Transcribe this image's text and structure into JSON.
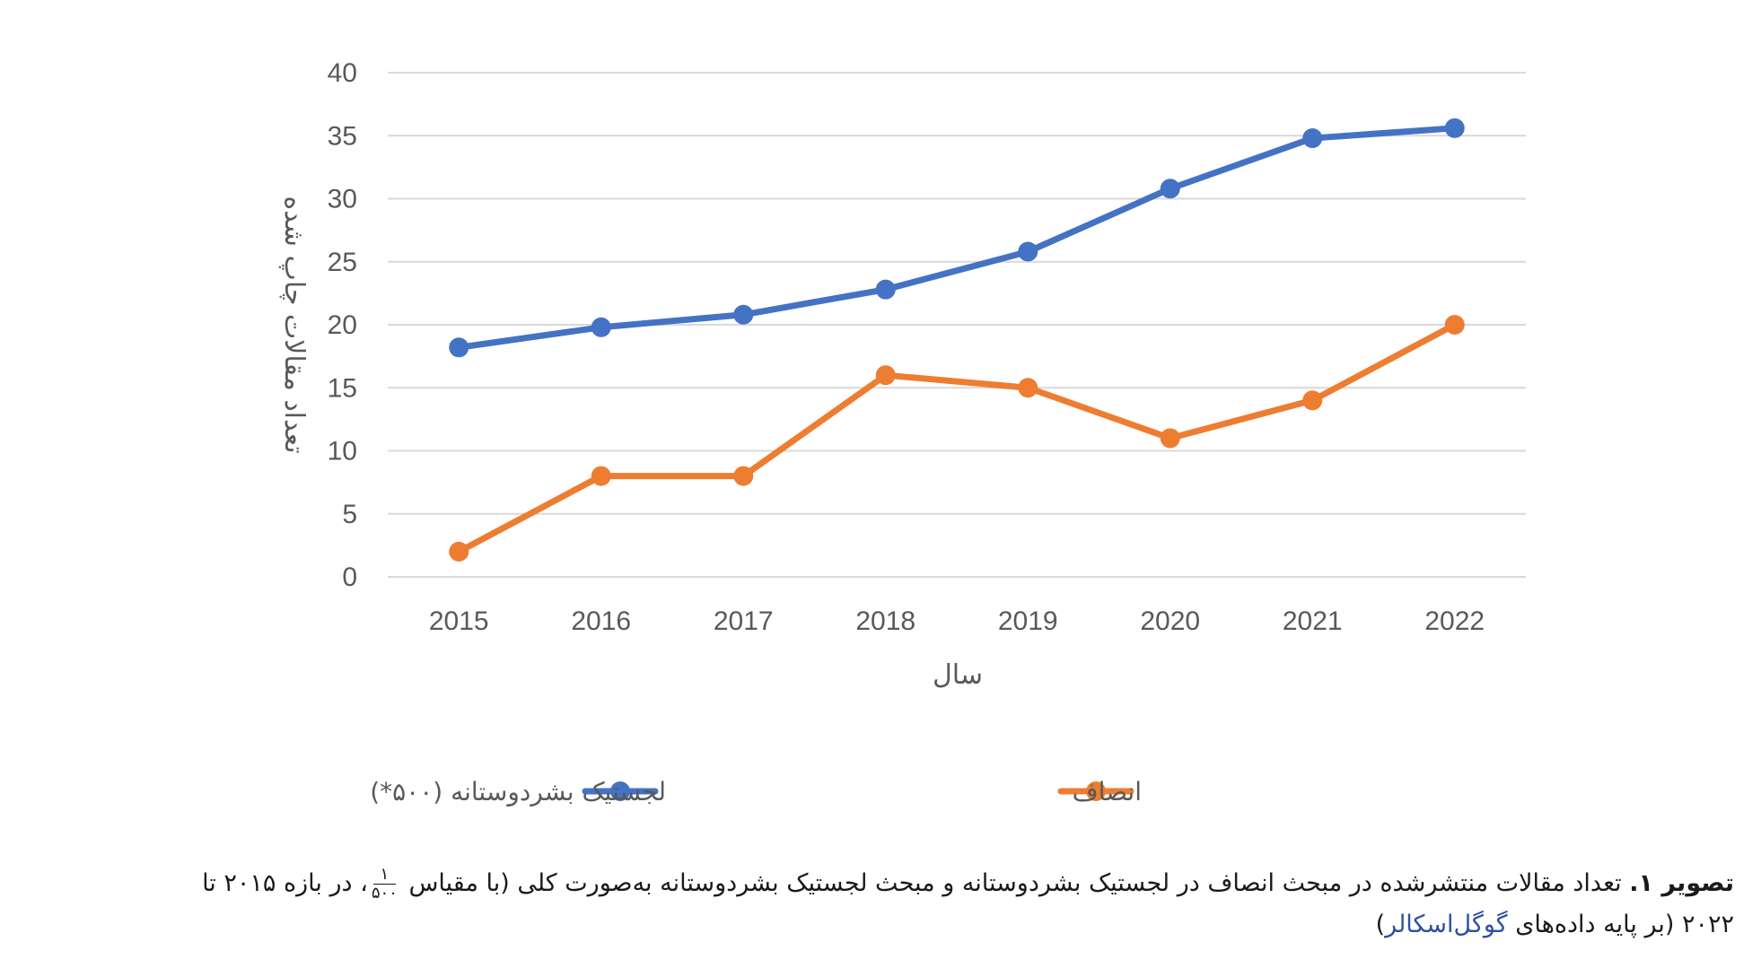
{
  "chart_data": {
    "type": "line",
    "categories": [
      "2015",
      "2016",
      "2017",
      "2018",
      "2019",
      "2020",
      "2021",
      "2022"
    ],
    "series": [
      {
        "name": "لجستیک بشردوستانه (۵۰۰*)",
        "color": "#4472C4",
        "values": [
          18.2,
          19.8,
          20.8,
          22.8,
          25.8,
          30.8,
          34.8,
          35.6
        ]
      },
      {
        "name": "انصاف",
        "color": "#ED7D31",
        "values": [
          2,
          8,
          8,
          16,
          15,
          11,
          14,
          20
        ]
      }
    ],
    "yticks": [
      "0",
      "5",
      "10",
      "15",
      "20",
      "25",
      "30",
      "35",
      "40"
    ],
    "ylim": [
      0,
      40
    ],
    "xlabel": "سال",
    "ylabel": "تعداد مقالات چاپ شده",
    "grid": true,
    "legend_position": "bottom"
  },
  "caption": {
    "label": "تصویر ۱.",
    "text_part1": "تعداد مقالات منتشرشده در مبحث انصاف در لجستیک بشردوستانه و مبحث لجستیک بشردوستانه به‌صورت کلی (با مقیاس",
    "frac_num": "۱",
    "frac_den": "۵۰۰",
    "text_part2": "، در بازه ۲۰۱۵ تا",
    "line2_part1": "۲۰۲۲ (بر پایه داده‌های",
    "line2_link": "گوگل‌اسکالر",
    "line2_part2": ")"
  }
}
